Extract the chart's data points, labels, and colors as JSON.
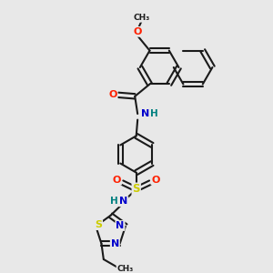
{
  "bg_color": "#e8e8e8",
  "bond_color": "#1a1a1a",
  "atom_colors": {
    "O": "#ff2000",
    "N": "#0000cc",
    "S": "#cccc00",
    "H": "#008080",
    "C": "#1a1a1a"
  },
  "figsize": [
    3.0,
    3.0
  ],
  "dpi": 100
}
